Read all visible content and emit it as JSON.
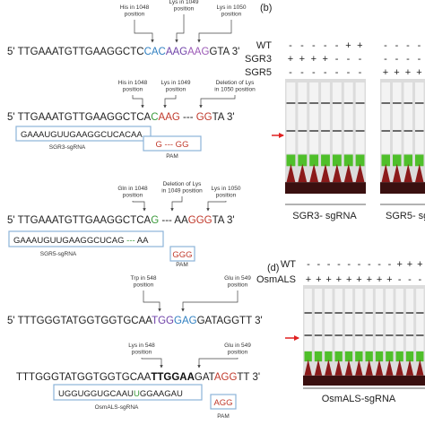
{
  "sequence_panel": {
    "blocks": [
      {
        "annotations": [
          {
            "lines": [
              "His in 1048",
              "position"
            ]
          },
          {
            "lines": [
              "Lys in 1049",
              "position"
            ]
          },
          {
            "lines": [
              "Lys in 1050",
              "position"
            ]
          }
        ],
        "sequence": [
          {
            "text": "5' TTGAAATGTTGAAGGCTC",
            "color": "#222222"
          },
          {
            "text": "CAC",
            "color": "#2f7fc1"
          },
          {
            "text": "AAG",
            "color": "#6f42a8"
          },
          {
            "text": "AAG",
            "color": "#9b59b6"
          },
          {
            "text": "GTA 3'",
            "color": "#222222"
          }
        ]
      },
      {
        "annotations": [
          {
            "lines": [
              "His in 1048",
              "position"
            ]
          },
          {
            "lines": [
              "Lys in 1049",
              "position"
            ]
          },
          {
            "lines": [
              "Deletion of Lys",
              "in 1050 position"
            ]
          }
        ],
        "sequence": [
          {
            "text": "5' TTGAAATGTTGAAGGCTCA",
            "color": "#222222"
          },
          {
            "text": "C",
            "color": "#3a9a3a"
          },
          {
            "text": "AAG",
            "color": "#c0392b"
          },
          {
            "text": " --- ",
            "color": "#222222"
          },
          {
            "text": "GG",
            "color": "#c0392b"
          },
          {
            "text": "TA 3'",
            "color": "#222222"
          }
        ]
      },
      {
        "annotations": [
          {
            "lines": [
              "Gln in 1048",
              "position"
            ]
          },
          {
            "lines": [
              "Deletion of Lys",
              "in 1049 position"
            ]
          },
          {
            "lines": [
              "Lys in 1050",
              "position"
            ]
          }
        ],
        "sequence": [
          {
            "text": "5' TTGAAATGTTGAAGGCTCA",
            "color": "#222222"
          },
          {
            "text": "G",
            "color": "#3a9a3a"
          },
          {
            "text": " --- AA",
            "color": "#222222"
          },
          {
            "text": "GGG",
            "color": "#c0392b"
          },
          {
            "text": "TA 3'",
            "color": "#222222"
          }
        ]
      },
      {
        "annotations": [
          {
            "lines": [
              "Trp in 548",
              "position"
            ]
          },
          {
            "lines": [
              "Glu in 549",
              "position"
            ]
          }
        ],
        "sequence": [
          {
            "text": "5' TTTGGGTATGGTGGTGCAA",
            "color": "#222222"
          },
          {
            "text": "TGG",
            "color": "#6f42a8"
          },
          {
            "text": "GAG",
            "color": "#2f7fc1"
          },
          {
            "text": "GATAGGTT 3'",
            "color": "#222222"
          }
        ]
      },
      {
        "annotations": [
          {
            "lines": [
              "Lys in 548",
              "position"
            ]
          },
          {
            "lines": [
              "Glu in 549",
              "position"
            ]
          }
        ],
        "sequence": [
          {
            "text": "TTTGGGTATGGTGGTGCAA",
            "color": "#222222"
          },
          {
            "text": "TTGGAA",
            "color": "#111111"
          },
          {
            "text": "GAT",
            "color": "#222222"
          },
          {
            "text": "AGG",
            "color": "#c0392b"
          },
          {
            "text": "TT 3'",
            "color": "#222222"
          }
        ]
      }
    ],
    "guides": [
      {
        "sgrna": [
          {
            "text": "GAAAUGUUGAAGGCUCACAA",
            "color": "#222222"
          }
        ],
        "name": "SGR3-sgRNA",
        "pam": [
          {
            "text": "G --- GG",
            "color": "#c0392b"
          }
        ],
        "pam_label": "PAM"
      },
      {
        "sgrna": [
          {
            "text": "GAAAUGUUGAAGGCUCAG",
            "color": "#222222"
          },
          {
            "text": " --- ",
            "color": "#3a9a3a"
          },
          {
            "text": "AA",
            "color": "#222222"
          }
        ],
        "name": "SGR5-sgRNA",
        "pam": [
          {
            "text": "GGG",
            "color": "#c0392b"
          }
        ],
        "pam_label": "PAM"
      },
      {
        "sgrna": [
          {
            "text": "UGGUGGUGCAAU",
            "color": "#222222"
          },
          {
            "text": "U",
            "color": "#3a9a3a"
          },
          {
            "text": "GGAAGAU",
            "color": "#222222"
          }
        ],
        "name": "OsmALS-sgRNA",
        "pam": [
          {
            "text": "AGG",
            "color": "#c0392b"
          }
        ],
        "pam_label": "PAM"
      }
    ]
  },
  "panel_b": {
    "label": "(b)",
    "rows": [
      {
        "name": "WT",
        "signs": [
          "-",
          "-",
          "-",
          "-",
          "-",
          "+",
          "+",
          "-",
          "-",
          "-",
          "-"
        ]
      },
      {
        "name": "SGR3",
        "signs": [
          "+",
          "+",
          "+",
          "+",
          "-",
          "-",
          "-",
          "-",
          "-",
          "-",
          "-"
        ]
      },
      {
        "name": "SGR5",
        "signs": [
          "-",
          "-",
          "-",
          "-",
          "-",
          "-",
          "-",
          "+",
          "+",
          "+",
          "+"
        ]
      }
    ],
    "captions": [
      "SGR3- sgRNA",
      "SGR5- sg"
    ]
  },
  "panel_d": {
    "label": "(d)",
    "rows": [
      {
        "name": "WT",
        "signs": [
          "-",
          "-",
          "-",
          "-",
          "-",
          "-",
          "-",
          "-",
          "-",
          "+",
          "+",
          "+"
        ]
      },
      {
        "name": "OsmALS",
        "signs": [
          "+",
          "+",
          "+",
          "+",
          "+",
          "+",
          "+",
          "+",
          "+",
          "-",
          "-",
          "-"
        ]
      }
    ],
    "captions": [
      "OsmALS-sgRNA"
    ]
  }
}
